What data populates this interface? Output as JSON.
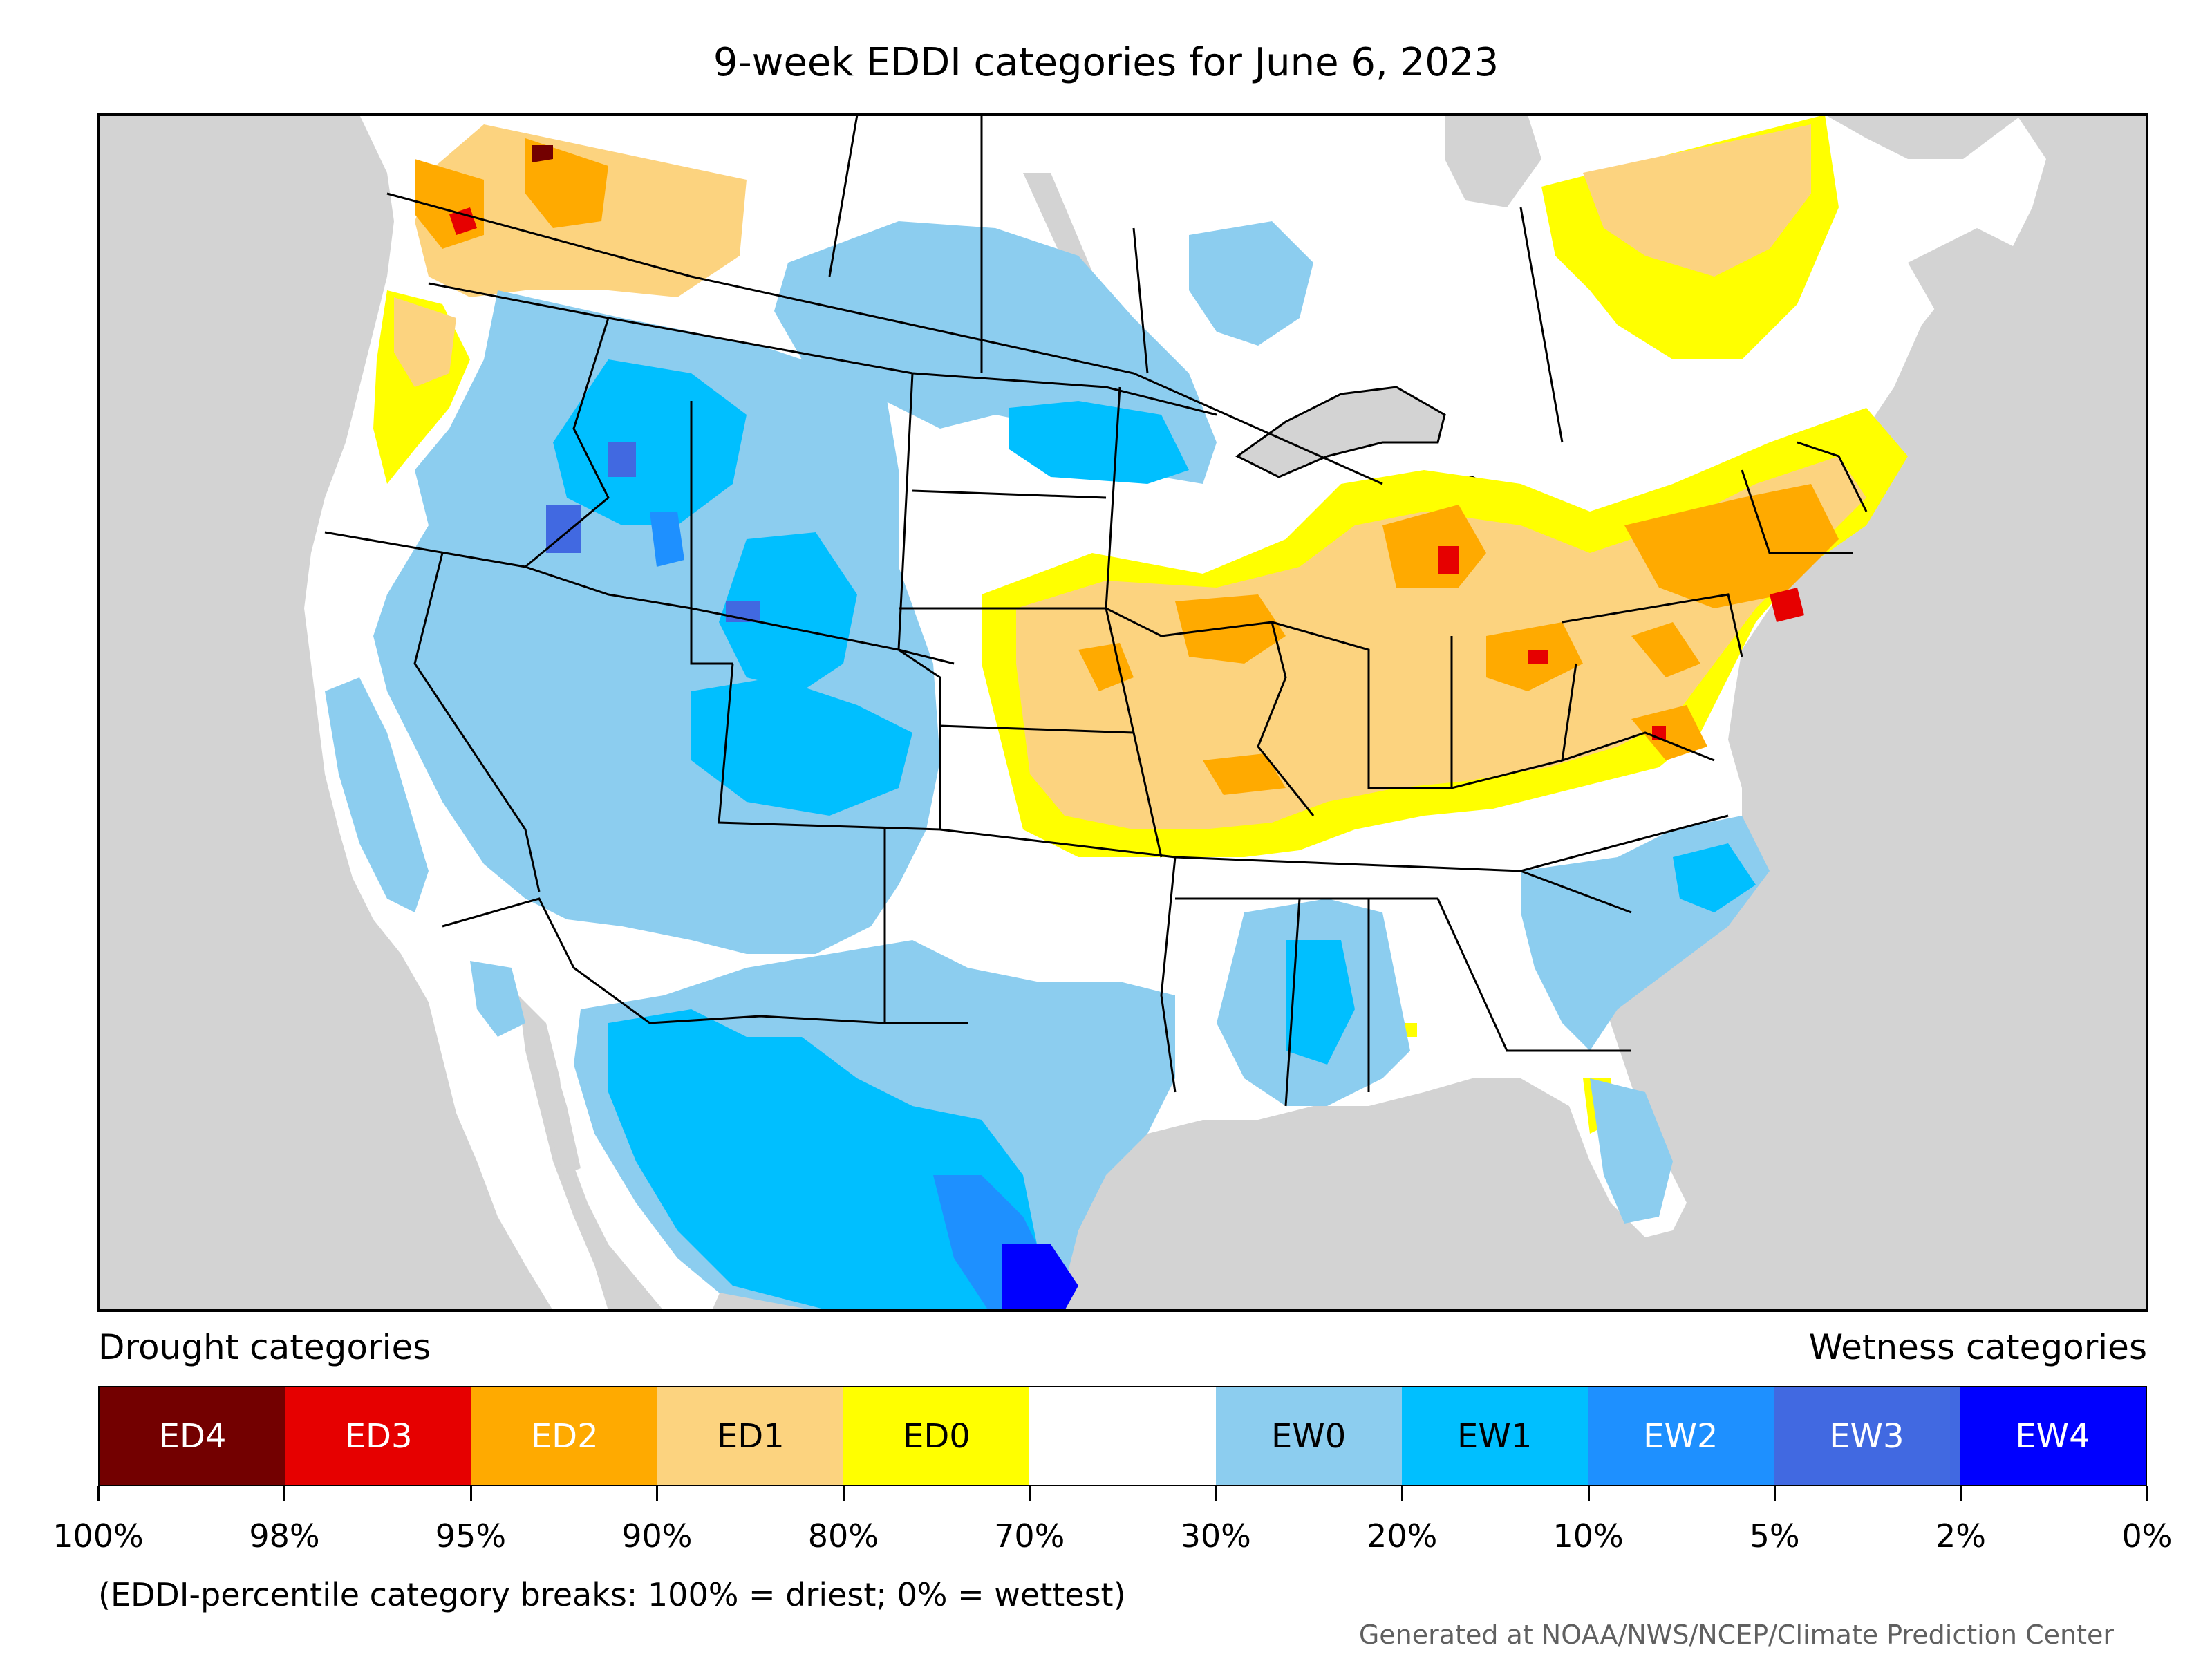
{
  "title": "9-week EDDI categories for June 6, 2023",
  "legend": {
    "drought_label": "Drought categories",
    "wetness_label": "Wetness categories",
    "categories": [
      {
        "label": "ED4",
        "color": "#730000",
        "text_color": "#ffffff"
      },
      {
        "label": "ED3",
        "color": "#e60000",
        "text_color": "#ffffff"
      },
      {
        "label": "ED2",
        "color": "#ffaa00",
        "text_color": "#ffffff"
      },
      {
        "label": "ED1",
        "color": "#fcd37f",
        "text_color": "#000000"
      },
      {
        "label": "ED0",
        "color": "#ffff00",
        "text_color": "#000000"
      },
      {
        "label": "",
        "color": "#ffffff",
        "text_color": "#000000"
      },
      {
        "label": "EW0",
        "color": "#8ccdef",
        "text_color": "#000000"
      },
      {
        "label": "EW1",
        "color": "#00bfff",
        "text_color": "#000000"
      },
      {
        "label": "EW2",
        "color": "#1e90ff",
        "text_color": "#ffffff"
      },
      {
        "label": "EW3",
        "color": "#4169e1",
        "text_color": "#ffffff"
      },
      {
        "label": "EW4",
        "color": "#0000ff",
        "text_color": "#ffffff"
      }
    ],
    "breaks": [
      "100%",
      "98%",
      "95%",
      "90%",
      "80%",
      "70%",
      "30%",
      "20%",
      "10%",
      "5%",
      "2%",
      "0%"
    ]
  },
  "note": "(EDDI-percentile category breaks: 100% = driest; 0% = wettest)",
  "credit": "Generated at NOAA/NWS/NCEP/Climate Prediction Center",
  "map": {
    "ocean_color": "#d3d3d3",
    "land_color": "#ffffff",
    "border_color": "#000000"
  }
}
